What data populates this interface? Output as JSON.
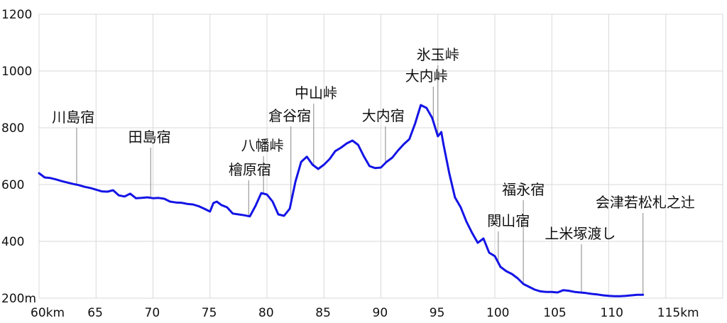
{
  "chart_data": {
    "type": "line",
    "title": "",
    "xlabel": "",
    "ylabel": "",
    "xlim": [
      60,
      120
    ],
    "ylim": [
      200,
      1200
    ],
    "x_ticks": [
      {
        "value": 60,
        "label": "60km"
      },
      {
        "value": 65,
        "label": "65"
      },
      {
        "value": 70,
        "label": "70"
      },
      {
        "value": 75,
        "label": "75"
      },
      {
        "value": 80,
        "label": "80"
      },
      {
        "value": 85,
        "label": "85"
      },
      {
        "value": 90,
        "label": "90"
      },
      {
        "value": 95,
        "label": "95"
      },
      {
        "value": 100,
        "label": "100"
      },
      {
        "value": 105,
        "label": "105"
      },
      {
        "value": 110,
        "label": "110"
      },
      {
        "value": 115,
        "label": "115km"
      }
    ],
    "y_ticks": [
      {
        "value": 200,
        "label": "200m"
      },
      {
        "value": 400,
        "label": "400"
      },
      {
        "value": 600,
        "label": "600"
      },
      {
        "value": 800,
        "label": "800"
      },
      {
        "value": 1000,
        "label": "1000"
      },
      {
        "value": 1200,
        "label": "1200"
      }
    ],
    "grid": true,
    "series": [
      {
        "color": "#1414e6",
        "x": [
          60.0,
          60.5,
          61.0,
          61.5,
          62.0,
          62.5,
          63.0,
          63.5,
          64.0,
          64.5,
          65.0,
          65.5,
          66.0,
          66.5,
          67.0,
          67.5,
          68.0,
          68.5,
          69.0,
          69.5,
          70.0,
          70.5,
          71.0,
          71.5,
          72.0,
          72.5,
          73.0,
          73.5,
          74.0,
          74.5,
          75.0,
          75.3,
          75.6,
          76.0,
          76.5,
          77.0,
          77.5,
          78.0,
          78.5,
          79.0,
          79.5,
          80.0,
          80.5,
          81.0,
          81.5,
          82.0,
          82.5,
          83.0,
          83.5,
          84.0,
          84.5,
          85.0,
          85.5,
          86.0,
          86.5,
          87.0,
          87.5,
          88.0,
          88.5,
          89.0,
          89.5,
          90.0,
          90.5,
          91.0,
          91.5,
          92.0,
          92.5,
          93.0,
          93.5,
          94.0,
          94.5,
          95.0,
          95.3,
          95.5,
          96.0,
          96.5,
          97.0,
          97.5,
          98.0,
          98.5,
          99.0,
          99.5,
          100.0,
          100.5,
          101.0,
          101.5,
          102.0,
          102.5,
          103.0,
          103.5,
          104.0,
          104.5,
          105.0,
          105.5,
          106.0,
          106.5,
          107.0,
          107.5,
          108.0,
          108.5,
          109.0,
          109.5,
          110.0,
          110.5,
          111.0,
          111.5,
          112.0,
          112.5,
          113.0
        ],
        "y": [
          640,
          625,
          623,
          618,
          612,
          607,
          602,
          598,
          592,
          588,
          582,
          576,
          575,
          580,
          562,
          558,
          568,
          552,
          553,
          555,
          552,
          553,
          550,
          540,
          537,
          536,
          532,
          530,
          524,
          515,
          505,
          535,
          540,
          528,
          520,
          498,
          495,
          492,
          488,
          525,
          570,
          565,
          540,
          495,
          490,
          515,
          610,
          680,
          698,
          670,
          655,
          670,
          690,
          718,
          730,
          745,
          755,
          740,
          700,
          665,
          658,
          660,
          680,
          695,
          720,
          742,
          760,
          815,
          880,
          870,
          835,
          770,
          785,
          740,
          640,
          555,
          520,
          470,
          430,
          395,
          410,
          360,
          348,
          310,
          295,
          285,
          270,
          250,
          240,
          230,
          224,
          222,
          222,
          220,
          228,
          226,
          222,
          220,
          218,
          215,
          213,
          210,
          208,
          207,
          207,
          208,
          210,
          212,
          212
        ]
      }
    ],
    "annotations": [
      {
        "label": "川島宿",
        "x": 63.3,
        "label_x": 63.0,
        "label_y": 820
      },
      {
        "label": "田島宿",
        "x": 69.8,
        "label_x": 69.7,
        "label_y": 750
      },
      {
        "label": "檜原宿",
        "x": 78.4,
        "label_x": 78.5,
        "label_y": 635
      },
      {
        "label": "八幡峠",
        "x": 79.7,
        "label_x": 79.6,
        "label_y": 720
      },
      {
        "label": "倉谷宿",
        "x": 82.1,
        "label_x": 82.0,
        "label_y": 825
      },
      {
        "label": "中山峠",
        "x": 84.1,
        "label_x": 84.3,
        "label_y": 905
      },
      {
        "label": "大内宿",
        "x": 90.4,
        "label_x": 90.2,
        "label_y": 825
      },
      {
        "label": "大内峠",
        "x": 94.6,
        "label_x": 94.0,
        "label_y": 965
      },
      {
        "label": "氷玉峠",
        "x": 95.0,
        "label_x": 95.0,
        "label_y": 1040
      },
      {
        "label": "関山宿",
        "x": 100.3,
        "label_x": 101.2,
        "label_y": 455
      },
      {
        "label": "福永宿",
        "x": 102.5,
        "label_x": 102.5,
        "label_y": 565
      },
      {
        "label": "上米塚渡し",
        "x": 107.6,
        "label_x": 107.5,
        "label_y": 410
      },
      {
        "label": "会津若松札之辻",
        "x": 113.0,
        "label_x": 113.2,
        "label_y": 520
      }
    ]
  }
}
